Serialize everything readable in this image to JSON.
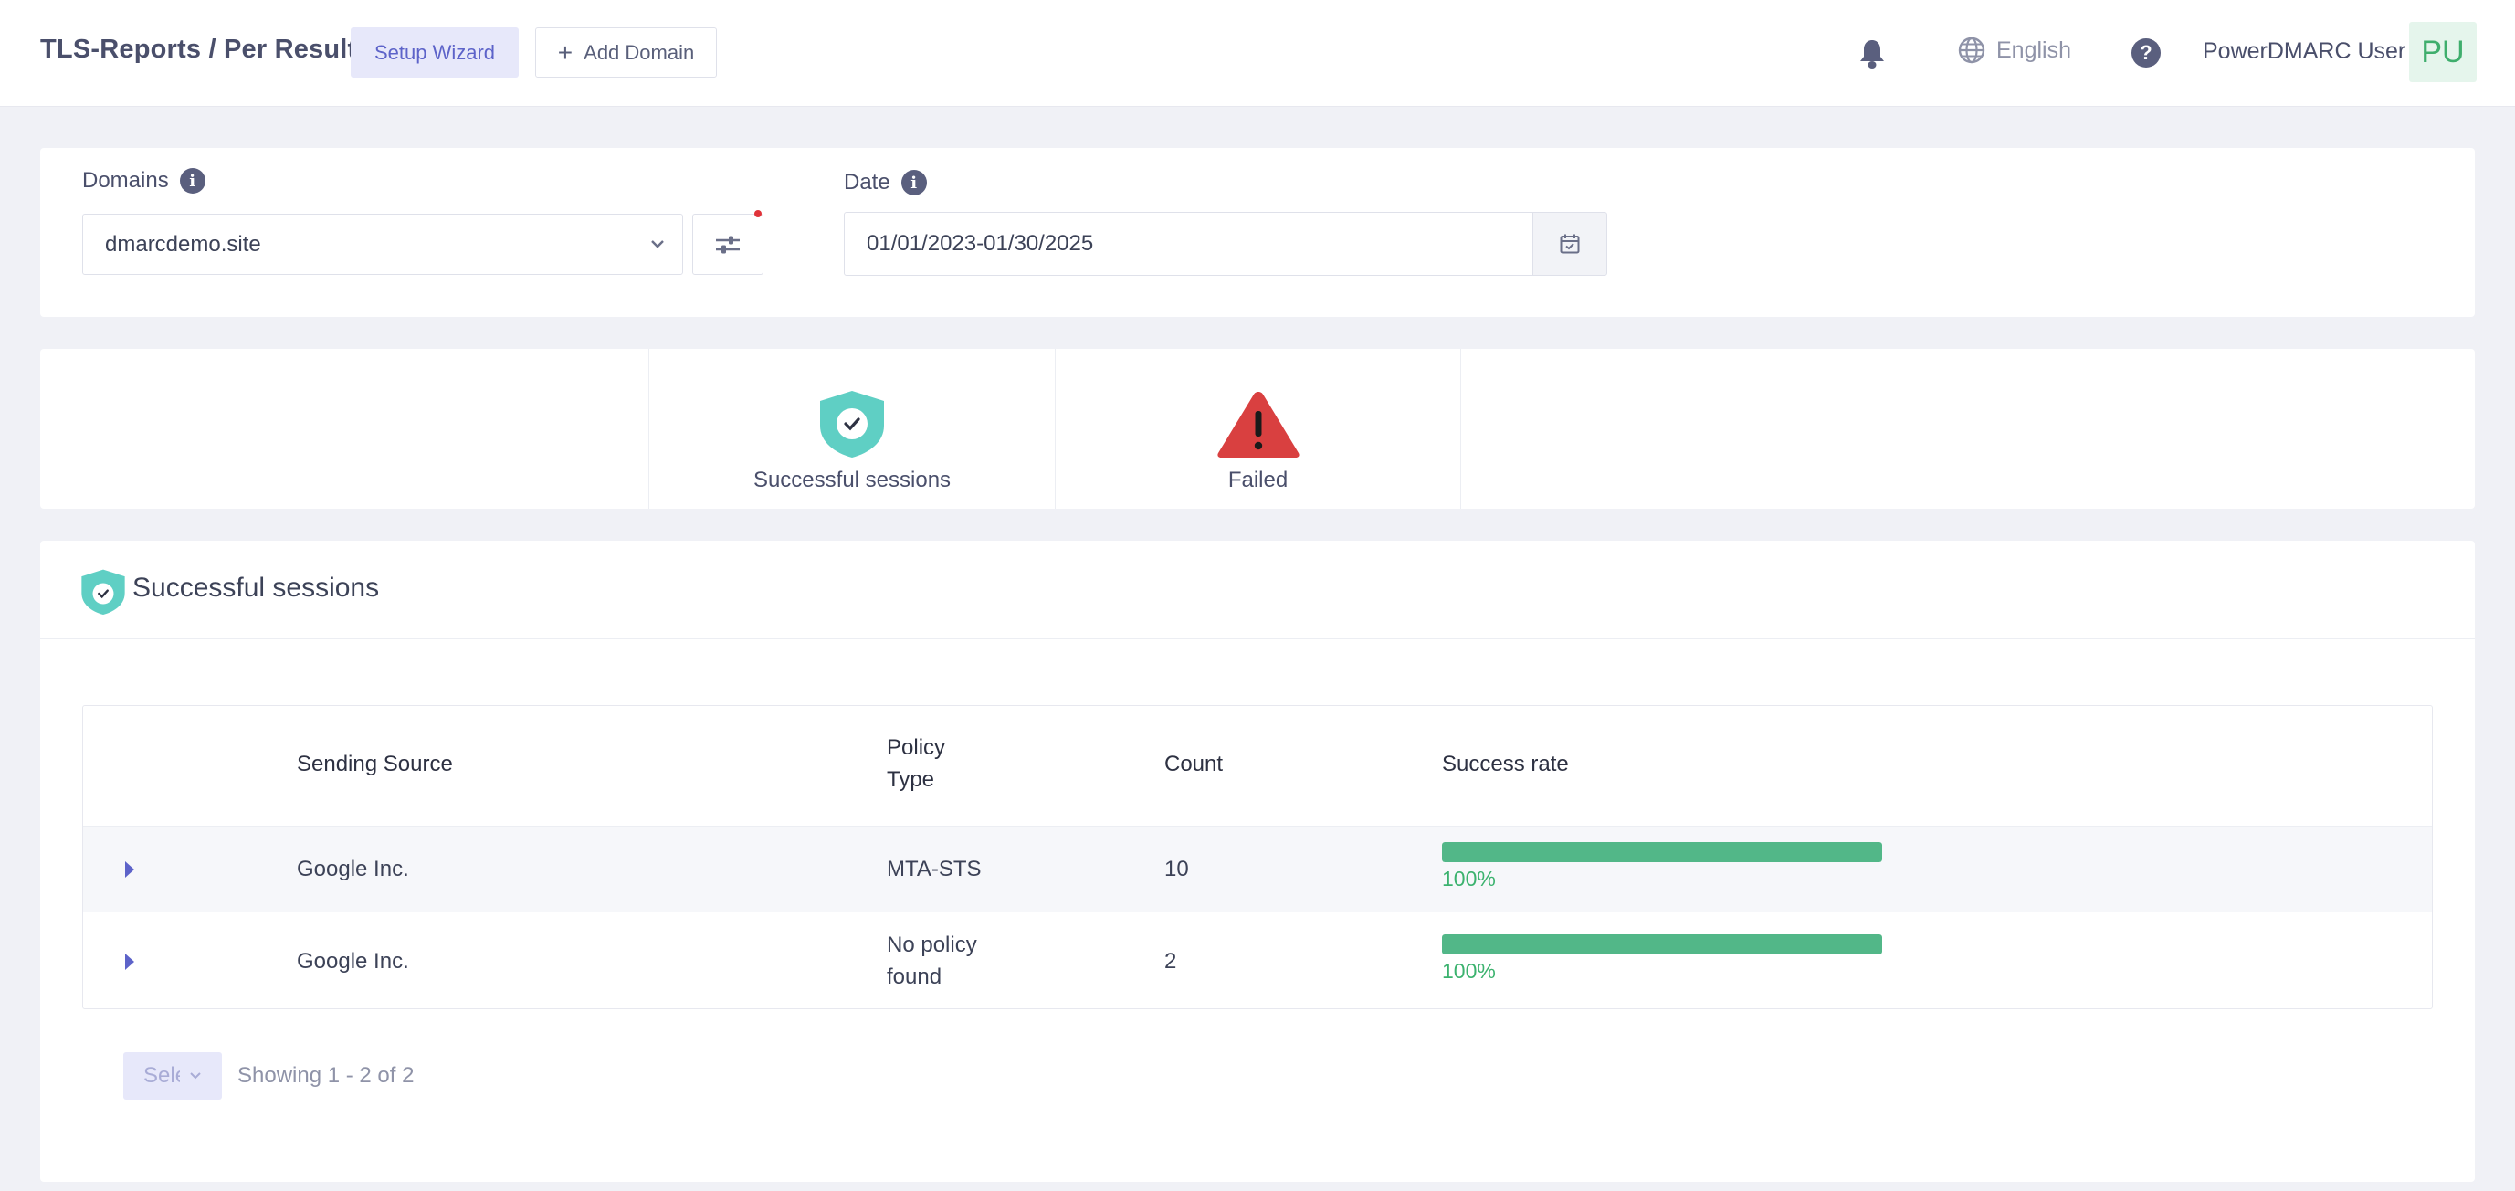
{
  "header": {
    "title": "TLS-Reports / Per Result",
    "setup_wizard": "Setup Wizard",
    "add_domain": "Add Domain",
    "language": "English",
    "user_name": "PowerDMARC User",
    "avatar_initials": "PU"
  },
  "filters": {
    "domains_label": "Domains",
    "domain_value": "dmarcdemo.site",
    "date_label": "Date",
    "date_value": "01/01/2023-01/30/2025"
  },
  "summary": {
    "successful_label": "Successful sessions",
    "failed_label": "Failed"
  },
  "section": {
    "title": "Successful sessions"
  },
  "table": {
    "columns": {
      "source": "Sending Source",
      "policy_line1": "Policy",
      "policy_line2": "Type",
      "count": "Count",
      "rate": "Success rate"
    },
    "rows": [
      {
        "source": "Google Inc.",
        "policy_line1": "MTA-STS",
        "policy_line2": "",
        "count": "10",
        "rate_label": "100%",
        "rate_fraction": 1.0
      },
      {
        "source": "Google Inc.",
        "policy_line1": "No policy",
        "policy_line2": "found",
        "count": "2",
        "rate_label": "100%",
        "rate_fraction": 1.0
      }
    ]
  },
  "pagination": {
    "select_placeholder": "Select",
    "showing": "Showing 1 - 2 of 2"
  },
  "colors": {
    "accent": "#5d63c9",
    "success": "#52b788",
    "shield": "#5fcfc4",
    "failed": "#d94040"
  }
}
